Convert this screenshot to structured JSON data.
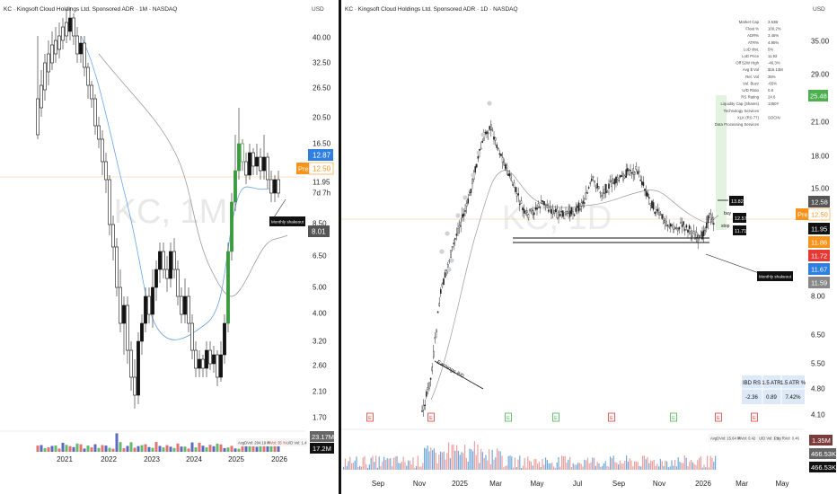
{
  "left": {
    "title": "KC · Kingsoft Cloud Holdings Ltd. Sponsored ADR · 1M · NASDAQ",
    "currency": "USD",
    "watermark": "KC, 1M",
    "y_ticks": [
      "40.00",
      "32.50",
      "26.50",
      "20.50",
      "16.50",
      "11.95",
      "7d 7h",
      "8.50",
      "6.50",
      "5.00",
      "4.00",
      "3.20",
      "2.60",
      "2.10",
      "1.70"
    ],
    "x_ticks": [
      "2021",
      "2022",
      "2023",
      "2024",
      "2025",
      "2026"
    ],
    "price_tags": {
      "last": "12.87",
      "pre_label": "Pre",
      "pre": "12.50",
      "low": "8.01",
      "vol1": "23.17M",
      "vol2": "17.2M"
    },
    "annotation": "Monthly shakeout",
    "vol_stats": [
      "AvgDVol: 294.19 M",
      "RVol: 35 %",
      "U/D Vol: 1.4"
    ]
  },
  "right": {
    "title": "KC · Kingsoft Cloud Holdings Ltd. Sponsored ADR · 1D · NASDAQ",
    "currency": "USD",
    "watermark": "KC, 1D",
    "y_ticks": [
      "35.00",
      "29.00",
      "21.00",
      "18.00",
      "15.00",
      "8.00",
      "6.50",
      "5.50",
      "4.80",
      "4.10"
    ],
    "x_ticks": [
      "Sep",
      "Nov",
      "2025",
      "Mar",
      "May",
      "Jul",
      "Sep",
      "Nov",
      "2026",
      "Mar",
      "May"
    ],
    "price_tags": {
      "t1": "25.48",
      "t2": "12.58",
      "pre_label": "Pre",
      "pre": "12.50",
      "t3": "11.95",
      "t4": "11.86",
      "t5": "11.72",
      "t6": "11.67",
      "t7": "11.59",
      "v1": "1.35M",
      "v2": "466.53K",
      "v3": "466.53K"
    },
    "trade_labels": {
      "target": "13.82",
      "buy_word": "buy",
      "buy": "12.57",
      "stop_word": "stop",
      "stop": "11.71"
    },
    "annotations": {
      "earnings": "Earnings 8/0",
      "shakeout": "Monthly shakeout"
    },
    "stats": [
      [
        "Market Cap",
        "3.53B"
      ],
      [
        "Float %",
        "100.2%"
      ],
      [
        "ADR%",
        "3.46%"
      ],
      [
        "ATR%",
        "4.95%"
      ],
      [
        "LoD dist.",
        "5%"
      ],
      [
        "LoD Price",
        "11.92"
      ],
      [
        "Off 52W High",
        "-46.3%"
      ],
      [
        "Avg $ Vol",
        "$16.13M"
      ],
      [
        "Rel. Vol",
        "35%"
      ],
      [
        "Vol. Buzz",
        "-65%"
      ],
      [
        "U/D Ratio",
        "0.8"
      ],
      [
        "RS Rating",
        "24.6"
      ],
      [
        "Liquidity Cap (Shares)",
        "1350Y"
      ],
      [
        "Technology Services",
        ""
      ],
      [
        "XLK (RS 77)",
        "SOCIN"
      ],
      [
        "Data Processing Services",
        ""
      ]
    ],
    "rs_table": {
      "headers": [
        "IBD RS",
        "1.5 ATR",
        "1.5 ATR %"
      ],
      "values": [
        "-2.36",
        "0.89",
        "7.42%"
      ]
    },
    "vol_stats": [
      "AvgDVol: 15.64 M",
      "RVol: 0.42",
      "U/D Vol: 1.1",
      "Proj RVol: 0.46"
    ]
  },
  "colors": {
    "up": "#3a9a3e",
    "down": "#111111",
    "ma_blue": "#6aa3e6",
    "ma_gray": "#999999",
    "pre": "#f7931a",
    "blue_tag": "#2f7fe0",
    "red_tag": "#e53935",
    "green_tag": "#4caf50"
  },
  "chart_data": [
    {
      "type": "candlestick",
      "title": "KC · Kingsoft Cloud Holdings Ltd. Sponsored ADR · 1M · NASDAQ",
      "x": [
        "2021",
        "2022",
        "2023",
        "2024",
        "2025",
        "2026"
      ],
      "y_scale": "log",
      "ylim": [
        1.6,
        48
      ],
      "series": [
        {
          "name": "KC 1M",
          "last": 12.87
        }
      ],
      "moving_averages": [
        {
          "color": "blue"
        },
        {
          "color": "gray"
        }
      ]
    },
    {
      "type": "candlestick",
      "title": "KC · Kingsoft Cloud Holdings Ltd. Sponsored ADR · 1D · NASDAQ",
      "x": [
        "Sep",
        "Nov",
        "2025",
        "Mar",
        "May",
        "Jul",
        "Sep",
        "Nov",
        "2026",
        "Mar",
        "May"
      ],
      "y_scale": "log",
      "ylim": [
        3.9,
        42
      ],
      "series": [
        {
          "name": "KC 1D",
          "last": 11.95
        }
      ]
    }
  ]
}
